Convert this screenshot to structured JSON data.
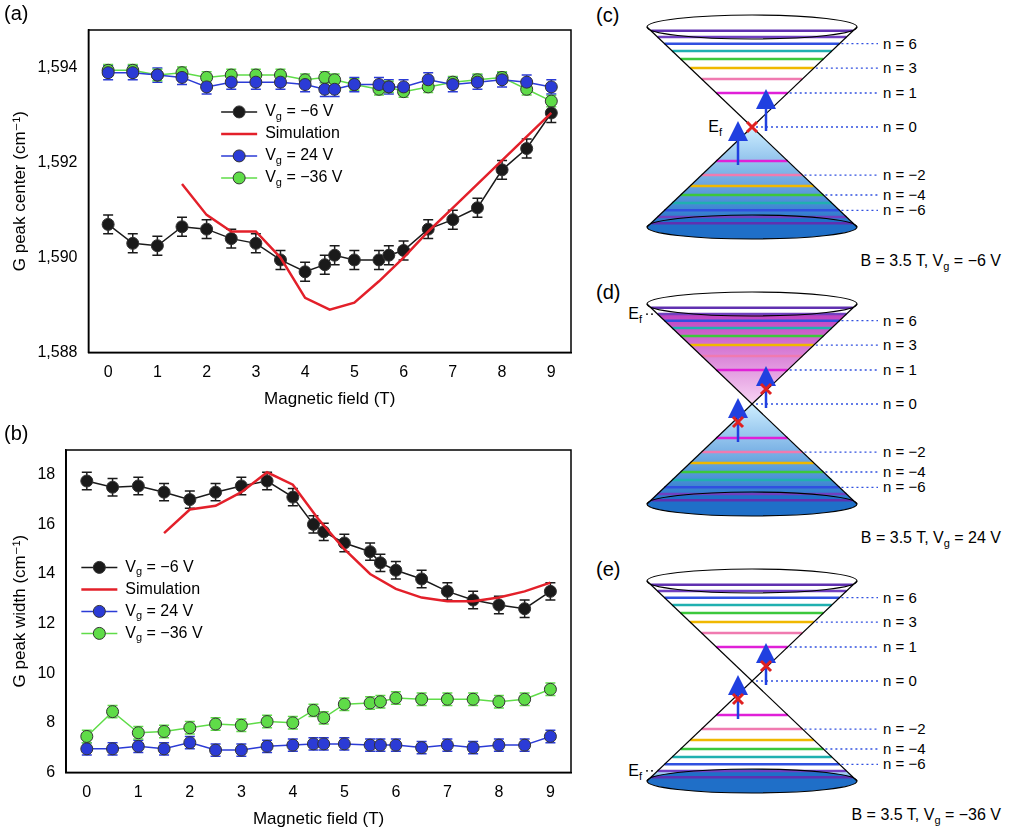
{
  "chart_data": [
    {
      "type": "scatter",
      "panel_label": "(a)",
      "x_label": "Magnetic field (T)",
      "y_label": "G peak center (cm⁻¹)",
      "xlim": [
        -0.4,
        9.4
      ],
      "xticks": [
        0,
        1,
        2,
        3,
        4,
        5,
        6,
        7,
        8,
        9
      ],
      "ylim": [
        1588,
        1594.8
      ],
      "yticks": [
        {
          "value": 1588,
          "label": "1,588"
        },
        {
          "value": 1590,
          "label": "1,590"
        },
        {
          "value": 1592,
          "label": "1,592"
        },
        {
          "value": 1594,
          "label": "1,594"
        }
      ],
      "grid": false,
      "legend": "center",
      "series": [
        {
          "name": "Vg = −6 V",
          "color": "#1a1a1a",
          "marker": "circle",
          "line_style": "solid",
          "x": [
            0,
            0.5,
            1,
            1.5,
            2,
            2.5,
            3,
            3.5,
            4,
            4.4,
            4.6,
            5,
            5.5,
            5.7,
            6,
            6.5,
            7,
            7.5,
            8,
            8.5,
            9
          ],
          "values": [
            1590.7,
            1590.3,
            1590.25,
            1590.65,
            1590.6,
            1590.4,
            1590.3,
            1589.95,
            1589.7,
            1589.85,
            1590.05,
            1589.95,
            1589.95,
            1590.05,
            1590.15,
            1590.6,
            1590.8,
            1591.05,
            1591.85,
            1592.3,
            1593.05
          ],
          "errors": [
            0.2,
            0.2,
            0.2,
            0.2,
            0.2,
            0.2,
            0.2,
            0.2,
            0.2,
            0.2,
            0.2,
            0.2,
            0.2,
            0.2,
            0.2,
            0.2,
            0.2,
            0.2,
            0.2,
            0.2,
            0.2
          ]
        },
        {
          "name": "Simulation",
          "color": "#e3202a",
          "marker": "none",
          "line_style": "solid",
          "x": [
            1.5,
            2,
            2.5,
            3,
            3.5,
            4,
            4.5,
            5,
            5.5,
            6,
            6.5,
            7,
            7.5,
            8,
            8.5,
            9
          ],
          "values": [
            1591.55,
            1590.9,
            1590.55,
            1590.55,
            1590.0,
            1589.15,
            1588.9,
            1589.05,
            1589.5,
            1590.0,
            1590.55,
            1591.05,
            1591.55,
            1592.05,
            1592.55,
            1593.05
          ]
        },
        {
          "name": "Vg = 24 V",
          "color": "#2b3bd6",
          "marker": "circle",
          "line_style": "solid",
          "x": [
            0,
            0.5,
            1,
            1.5,
            2,
            2.5,
            3,
            3.5,
            4,
            4.4,
            4.6,
            5,
            5.5,
            5.7,
            6,
            6.5,
            7,
            7.5,
            8,
            8.5,
            9
          ],
          "values": [
            1593.9,
            1593.9,
            1593.85,
            1593.8,
            1593.6,
            1593.7,
            1593.7,
            1593.7,
            1593.65,
            1593.55,
            1593.55,
            1593.65,
            1593.65,
            1593.6,
            1593.6,
            1593.75,
            1593.65,
            1593.7,
            1593.75,
            1593.7,
            1593.6
          ],
          "errors": [
            0.15,
            0.15,
            0.15,
            0.15,
            0.15,
            0.15,
            0.15,
            0.15,
            0.15,
            0.15,
            0.15,
            0.15,
            0.15,
            0.15,
            0.15,
            0.15,
            0.15,
            0.15,
            0.15,
            0.15,
            0.15
          ]
        },
        {
          "name": "Vg = −36 V",
          "color": "#5fdc48",
          "marker": "circle",
          "line_style": "solid",
          "x": [
            0,
            0.5,
            1,
            1.5,
            2,
            2.5,
            3,
            3.5,
            4,
            4.4,
            4.6,
            5,
            5.5,
            5.7,
            6,
            6.5,
            7,
            7.5,
            8,
            8.5,
            9
          ],
          "values": [
            1593.95,
            1593.95,
            1593.85,
            1593.9,
            1593.8,
            1593.85,
            1593.85,
            1593.85,
            1593.75,
            1593.8,
            1593.75,
            1593.65,
            1593.55,
            1593.6,
            1593.5,
            1593.6,
            1593.7,
            1593.75,
            1593.8,
            1593.55,
            1593.3
          ],
          "errors": [
            0.12,
            0.12,
            0.12,
            0.12,
            0.12,
            0.12,
            0.12,
            0.12,
            0.12,
            0.12,
            0.12,
            0.12,
            0.12,
            0.12,
            0.12,
            0.12,
            0.12,
            0.12,
            0.12,
            0.12,
            0.12
          ]
        }
      ]
    },
    {
      "type": "scatter",
      "panel_label": "(b)",
      "x_label": "Magnetic field (T)",
      "y_label": "G peak width (cm⁻¹)",
      "xlim": [
        -0.4,
        9.4
      ],
      "xticks": [
        0,
        1,
        2,
        3,
        4,
        5,
        6,
        7,
        8,
        9
      ],
      "ylim": [
        6,
        19
      ],
      "yticks": [
        6,
        8,
        10,
        12,
        14,
        16,
        18
      ],
      "grid": false,
      "legend": "left",
      "series": [
        {
          "name": "Vg = −6 V",
          "color": "#1a1a1a",
          "marker": "circle",
          "line_style": "solid",
          "x": [
            0,
            0.5,
            1,
            1.5,
            2,
            2.5,
            3,
            3.5,
            4,
            4.4,
            4.6,
            5,
            5.5,
            5.7,
            6,
            6.5,
            7,
            7.5,
            8,
            8.5,
            9
          ],
          "values": [
            17.75,
            17.5,
            17.55,
            17.3,
            17.0,
            17.3,
            17.55,
            17.75,
            17.1,
            16.0,
            15.7,
            15.25,
            14.9,
            14.45,
            14.15,
            13.8,
            13.3,
            12.95,
            12.75,
            12.6,
            13.3
          ],
          "errors": [
            0.35,
            0.35,
            0.35,
            0.35,
            0.35,
            0.35,
            0.35,
            0.35,
            0.35,
            0.35,
            0.35,
            0.35,
            0.35,
            0.35,
            0.35,
            0.35,
            0.35,
            0.35,
            0.35,
            0.35,
            0.35
          ]
        },
        {
          "name": "Simulation",
          "color": "#e3202a",
          "marker": "none",
          "line_style": "solid",
          "x": [
            1.5,
            2,
            2.5,
            3,
            3.5,
            4,
            4.5,
            5,
            5.5,
            6,
            6.5,
            7,
            7.5,
            8,
            8.5,
            9
          ],
          "values": [
            15.65,
            16.6,
            16.75,
            17.3,
            18.1,
            17.6,
            16.2,
            15.0,
            14.0,
            13.4,
            13.05,
            12.9,
            12.9,
            13.05,
            13.3,
            13.65
          ]
        },
        {
          "name": "Vg = 24 V",
          "color": "#2b3bd6",
          "marker": "circle",
          "line_style": "solid",
          "x": [
            0,
            0.5,
            1,
            1.5,
            2,
            2.5,
            3,
            3.5,
            4,
            4.4,
            4.6,
            5,
            5.5,
            5.7,
            6,
            6.5,
            7,
            7.5,
            8,
            8.5,
            9
          ],
          "values": [
            6.95,
            6.95,
            7.05,
            6.95,
            7.2,
            6.9,
            6.9,
            7.05,
            7.1,
            7.15,
            7.15,
            7.15,
            7.1,
            7.1,
            7.1,
            7.0,
            7.1,
            7.0,
            7.1,
            7.1,
            7.45
          ],
          "errors": [
            0.25,
            0.25,
            0.25,
            0.25,
            0.25,
            0.25,
            0.25,
            0.25,
            0.25,
            0.25,
            0.25,
            0.25,
            0.25,
            0.25,
            0.25,
            0.25,
            0.25,
            0.25,
            0.25,
            0.25,
            0.25
          ]
        },
        {
          "name": "Vg = −36 V",
          "color": "#5fdc48",
          "marker": "circle",
          "line_style": "solid",
          "x": [
            0,
            0.5,
            1,
            1.5,
            2,
            2.5,
            3,
            3.5,
            4,
            4.4,
            4.6,
            5,
            5.5,
            5.7,
            6,
            6.5,
            7,
            7.5,
            8,
            8.5,
            9
          ],
          "values": [
            7.45,
            8.45,
            7.6,
            7.65,
            7.8,
            7.95,
            7.9,
            8.05,
            8.0,
            8.5,
            8.2,
            8.75,
            8.8,
            8.85,
            9.0,
            8.95,
            8.95,
            8.95,
            8.85,
            8.95,
            9.35
          ],
          "errors": [
            0.25,
            0.25,
            0.25,
            0.25,
            0.25,
            0.25,
            0.25,
            0.25,
            0.25,
            0.25,
            0.25,
            0.25,
            0.25,
            0.25,
            0.25,
            0.25,
            0.25,
            0.25,
            0.25,
            0.25,
            0.25
          ]
        }
      ]
    }
  ],
  "diagrams": [
    {
      "panel_label": "(c)",
      "levels": [
        6,
        3,
        1,
        0,
        -2,
        -4,
        -6
      ],
      "level_labels": [
        "n = 6",
        "n = 3",
        "n = 1",
        "n = 0",
        "n = −2",
        "n = −4",
        "n = −6"
      ],
      "fermi_label": "Ef",
      "fermi_level": 0,
      "caption": "B = 3.5 T, Vg = −6 V"
    },
    {
      "panel_label": "(d)",
      "levels": [
        6,
        3,
        1,
        0,
        -2,
        -4,
        -6
      ],
      "level_labels": [
        "n = 6",
        "n = 3",
        "n = 1",
        "n = 0",
        "n = −2",
        "n = −4",
        "n = −6"
      ],
      "fermi_label": "Ef",
      "fermi_level": 7,
      "caption": "B = 3.5 T, Vg = 24 V"
    },
    {
      "panel_label": "(e)",
      "levels": [
        6,
        3,
        1,
        0,
        -2,
        -4,
        -6
      ],
      "level_labels": [
        "n = 6",
        "n = 3",
        "n = 1",
        "n = 0",
        "n = −2",
        "n = −4",
        "n = −6"
      ],
      "fermi_label": "Ef",
      "fermi_level": -7,
      "caption": "B = 3.5 T, Vg = −36 V"
    }
  ]
}
